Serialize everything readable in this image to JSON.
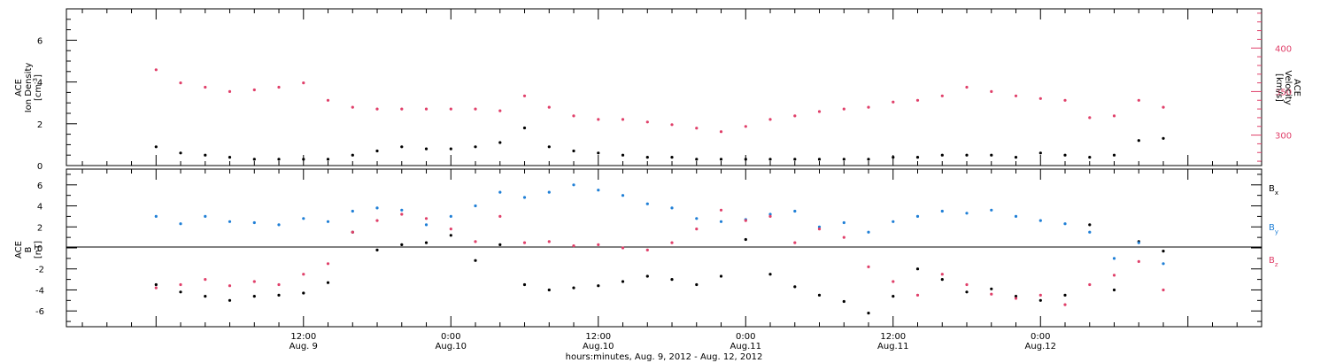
{
  "chart_data": [
    {
      "type": "scatter",
      "panel": "top",
      "ylabel_left": [
        "ACE",
        "Ion Density",
        "[cm-3]"
      ],
      "ylabel_right": [
        "ACE",
        "Velocity",
        "[km/s]"
      ],
      "ylim_left": [
        0,
        7.5
      ],
      "ylim_right": [
        265,
        445
      ],
      "yticks_left": [
        "0",
        "2",
        "4",
        "6"
      ],
      "yticks_right": [
        "300",
        "350",
        "400"
      ],
      "yticks_left_values": [
        0,
        2,
        4,
        6
      ],
      "yticks_right_values": [
        300,
        350,
        400
      ],
      "colors": {
        "density": "#000000",
        "velocity": "#e0406a"
      },
      "series": [
        {
          "name": "Ion Density",
          "axis": "left",
          "x_hours": [
            0,
            2,
            4,
            6,
            8,
            10,
            12,
            14,
            16,
            18,
            20,
            22,
            24,
            26,
            28,
            30,
            32,
            34,
            36,
            38,
            40,
            42,
            44,
            46,
            48,
            50,
            52,
            54,
            56,
            58,
            60,
            62,
            64,
            66,
            68,
            70,
            72,
            74,
            76,
            78,
            80,
            82
          ],
          "y": [
            0.9,
            0.6,
            0.5,
            0.4,
            0.3,
            0.3,
            0.3,
            0.3,
            0.5,
            0.7,
            0.9,
            0.8,
            0.8,
            0.9,
            1.1,
            1.8,
            0.9,
            0.7,
            0.6,
            0.5,
            0.4,
            0.4,
            0.3,
            0.3,
            0.3,
            0.3,
            0.3,
            0.3,
            0.3,
            0.3,
            0.4,
            0.4,
            0.5,
            0.5,
            0.5,
            0.4,
            0.6,
            0.5,
            0.4,
            0.5,
            1.2,
            1.3
          ]
        },
        {
          "name": "Velocity",
          "axis": "right",
          "x_hours": [
            0,
            2,
            4,
            6,
            8,
            10,
            12,
            14,
            16,
            18,
            20,
            22,
            24,
            26,
            28,
            30,
            32,
            34,
            36,
            38,
            40,
            42,
            44,
            46,
            48,
            50,
            52,
            54,
            56,
            58,
            60,
            62,
            64,
            66,
            68,
            70,
            72,
            74,
            76,
            78,
            80,
            82
          ],
          "y": [
            375,
            360,
            355,
            350,
            352,
            355,
            360,
            340,
            332,
            330,
            330,
            330,
            330,
            330,
            328,
            345,
            332,
            322,
            318,
            318,
            315,
            312,
            308,
            304,
            310,
            318,
            322,
            327,
            330,
            332,
            338,
            340,
            345,
            355,
            350,
            345,
            342,
            340,
            320,
            322,
            340,
            332
          ]
        }
      ]
    },
    {
      "type": "scatter",
      "panel": "bottom",
      "ylabel": [
        "ACE",
        "B",
        "[nT]"
      ],
      "ylim": [
        -7.5,
        7.5
      ],
      "yticks": [
        "-6",
        "-4",
        "-2",
        "0",
        "2",
        "4",
        "6"
      ],
      "yticks_values": [
        -6,
        -4,
        -2,
        0,
        2,
        4,
        6
      ],
      "legend": [
        "Bx",
        "By",
        "Bz"
      ],
      "legend_labels": {
        "Bx": {
          "main": "B",
          "sub": "x"
        },
        "By": {
          "main": "B",
          "sub": "y"
        },
        "Bz": {
          "main": "B",
          "sub": "z"
        }
      },
      "legend_placement": "right",
      "colors": {
        "Bx": "#000000",
        "By": "#1f7fd6",
        "Bz": "#e0406a"
      },
      "series": [
        {
          "name": "Bx",
          "x_hours": [
            0,
            2,
            4,
            6,
            8,
            10,
            12,
            14,
            16,
            18,
            20,
            22,
            24,
            26,
            28,
            30,
            32,
            34,
            36,
            38,
            40,
            42,
            44,
            46,
            48,
            50,
            52,
            54,
            56,
            58,
            60,
            62,
            64,
            66,
            68,
            70,
            72,
            74,
            76,
            78,
            80,
            82
          ],
          "y": [
            -3.5,
            -4.2,
            -4.6,
            -5,
            -4.6,
            -4.5,
            -4.3,
            -3.3,
            1.5,
            -0.2,
            0.3,
            0.5,
            1.2,
            -1.2,
            0.3,
            -3.5,
            -4,
            -3.8,
            -3.6,
            -3.2,
            -2.7,
            -3,
            -3.5,
            -2.7,
            0.8,
            -2.5,
            -3.7,
            -4.5,
            -5.1,
            -6.2,
            -4.6,
            -2,
            -3,
            -4.2,
            -3.9,
            -4.6,
            -5,
            -4.5,
            2.2,
            -4,
            0.6,
            -0.3
          ]
        },
        {
          "name": "By",
          "x_hours": [
            0,
            2,
            4,
            6,
            8,
            10,
            12,
            14,
            16,
            18,
            20,
            22,
            24,
            26,
            28,
            30,
            32,
            34,
            36,
            38,
            40,
            42,
            44,
            46,
            48,
            50,
            52,
            54,
            56,
            58,
            60,
            62,
            64,
            66,
            68,
            70,
            72,
            74,
            76,
            78,
            80,
            82
          ],
          "y": [
            3,
            2.3,
            3,
            2.5,
            2.4,
            2.2,
            2.8,
            2.5,
            3.5,
            3.8,
            3.6,
            2.2,
            3,
            4,
            5.3,
            4.8,
            5.3,
            6,
            5.5,
            5,
            4.2,
            3.8,
            2.8,
            2.5,
            2.7,
            3.2,
            3.5,
            2,
            2.4,
            1.5,
            2.5,
            3,
            3.5,
            3.3,
            3.6,
            3,
            2.6,
            2.3,
            1.5,
            -1,
            0.5,
            -1.5
          ]
        },
        {
          "name": "Bz",
          "x_hours": [
            0,
            2,
            4,
            6,
            8,
            10,
            12,
            14,
            16,
            18,
            20,
            22,
            24,
            26,
            28,
            30,
            32,
            34,
            36,
            38,
            40,
            42,
            44,
            46,
            48,
            50,
            52,
            54,
            56,
            58,
            60,
            62,
            64,
            66,
            68,
            70,
            72,
            74,
            76,
            78,
            80,
            82
          ],
          "y": [
            -3.8,
            -3.5,
            -3,
            -3.6,
            -3.2,
            -3.5,
            -2.5,
            -1.5,
            1.5,
            2.6,
            3.2,
            2.8,
            1.8,
            0.6,
            3,
            0.5,
            0.6,
            0.2,
            0.3,
            0,
            -0.2,
            0.5,
            1.8,
            3.6,
            2.6,
            3,
            0.5,
            1.8,
            1,
            -1.8,
            -3.2,
            -4.5,
            -2.5,
            -3.5,
            -4.4,
            -4.8,
            -4.5,
            -5.4,
            -3.5,
            -2.6,
            -1.3,
            -4
          ]
        }
      ],
      "zero_line": 0
    }
  ],
  "xaxis": {
    "xlabel": "hours:minutes, Aug.  9, 2012 - Aug. 12, 2012",
    "xlim_hours": [
      -7.3,
      90
    ],
    "ticks": [
      {
        "hour": 12,
        "time": "12:00",
        "date": "Aug.  9"
      },
      {
        "hour": 24,
        "time": "0:00",
        "date": "Aug.10"
      },
      {
        "hour": 36,
        "time": "12:00",
        "date": "Aug.10"
      },
      {
        "hour": 48,
        "time": "0:00",
        "date": "Aug.11"
      },
      {
        "hour": 60,
        "time": "12:00",
        "date": "Aug.11"
      },
      {
        "hour": 72,
        "time": "0:00",
        "date": "Aug.12"
      }
    ]
  }
}
